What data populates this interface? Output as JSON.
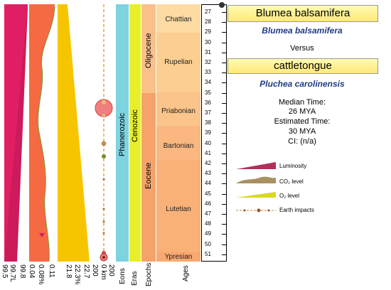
{
  "columns": {
    "luminosity": {
      "ticks": [
        "99.5",
        "99.7L",
        "99.8"
      ]
    },
    "co2": {
      "ticks": [
        "0.04",
        "0.08%",
        "0.11"
      ]
    },
    "o2": {
      "ticks": [
        "21.8",
        "22.3%",
        "22.7"
      ]
    },
    "impacts": {
      "ticks": [
        "200",
        "0 km",
        "200"
      ]
    }
  },
  "bands": {
    "eons_label": "Eons",
    "eras_label": "Eras",
    "epochs_label": "Epochs",
    "ages_label": "Ages",
    "eon_name": "Phanerozoic",
    "era_name": "Cenozoic",
    "epochs": [
      "Oligocene",
      "Eocene"
    ],
    "ages": [
      "Chattian",
      "Rupelian",
      "Priabonian",
      "Bartonian",
      "Lutetian",
      "Ypresian"
    ]
  },
  "time_axis": {
    "ticks": [
      "27",
      "28",
      "29",
      "30",
      "31",
      "32",
      "33",
      "34",
      "35",
      "36",
      "37",
      "38",
      "39",
      "40",
      "41",
      "42",
      "43",
      "44",
      "45",
      "46",
      "47",
      "48",
      "49",
      "50",
      "51"
    ]
  },
  "comparison": {
    "taxon_a_common": "Blumea balsamifera",
    "taxon_a_scientific": "Blumea balsamifera",
    "versus": "Versus",
    "taxon_b_common": "cattletongue",
    "taxon_b_scientific": "Pluchea carolinensis",
    "median_time_label": "Median Time:",
    "median_time_value": "26 MYA",
    "estimated_time_label": "Estimated Time:",
    "estimated_time_value": "30 MYA",
    "ci": "CI: (n/a)"
  },
  "legend": {
    "luminosity": "Luminosity",
    "co2": "CO₂ level",
    "o2": "O₂ level",
    "impacts": "Earth impacts"
  },
  "colors": {
    "luminosity": "#d81b60",
    "co2": "#f4a261",
    "o2": "#f7d400",
    "eon": "#7dd3df",
    "era": "#e8ef2a",
    "epoch": "#f6a86a",
    "age": "#f9c48a",
    "title_bg": "#fff19a",
    "scientific": "#1f3b84"
  }
}
